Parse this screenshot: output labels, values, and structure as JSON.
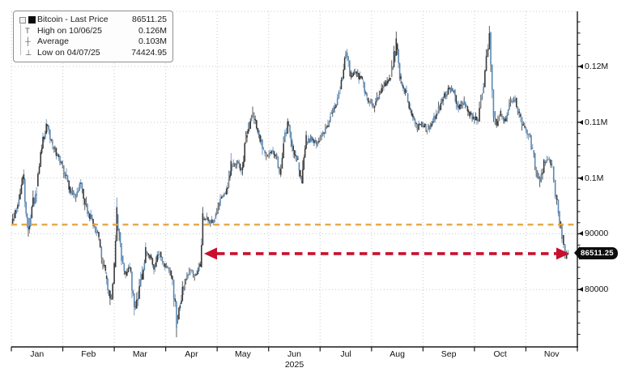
{
  "legend": {
    "rows": [
      {
        "marker": "filled-square-icon",
        "label": "Bitcoin - Last Price",
        "value": "86511.25"
      },
      {
        "marker": "high-tee-icon",
        "label": "High on 10/06/25",
        "value": "0.126M"
      },
      {
        "marker": "average-cross-icon",
        "label": "Average",
        "value": "0.103M"
      },
      {
        "marker": "low-tee-icon",
        "label": "Low on 04/07/25",
        "value": "74424.95"
      }
    ]
  },
  "axes": {
    "y_ticks": [
      {
        "label": "0.12M",
        "value": 120000
      },
      {
        "label": "0.11M",
        "value": 110000
      },
      {
        "label": "0.1M",
        "value": 100000
      },
      {
        "label": "90000",
        "value": 90000
      },
      {
        "label": "80000",
        "value": 80000
      }
    ],
    "x_months": [
      "Jan",
      "Feb",
      "Mar",
      "Apr",
      "May",
      "Jun",
      "Jul",
      "Aug",
      "Sep",
      "Oct",
      "Nov"
    ],
    "year": "2025"
  },
  "annotations": {
    "last_price_badge": "86511.25",
    "orange_reference_level": 91650,
    "red_arrow_level": 86450,
    "red_arrow_span_months": [
      3.75,
      10.8
    ]
  },
  "colors": {
    "bar_dark": "#383838",
    "bar_blue": "#5C88B2",
    "bar_gray": "#8C8C8C",
    "grid": "#c9c9c9",
    "axis": "#1a1a1a",
    "orange_line": "#E5A33E",
    "red_arrow": "#C8102E",
    "badge_bg": "#0d0d0d"
  },
  "chart_data": {
    "type": "line",
    "title": "Bitcoin - Last Price",
    "high": {
      "date": "10/06/25",
      "label": "0.126M"
    },
    "average_label": "0.103M",
    "low": {
      "date": "04/07/25",
      "value": 74424.95
    },
    "last": 86511.25,
    "x_unit": "months since 2025-01-01",
    "xlabels": [
      "Jan",
      "Feb",
      "Mar",
      "Apr",
      "May",
      "Jun",
      "Jul",
      "Aug",
      "Sep",
      "Oct",
      "Nov"
    ],
    "ylim": [
      69700,
      129900
    ],
    "grid": true,
    "legend_position": "top-left",
    "t": [
      0.0,
      0.1,
      0.22,
      0.33,
      0.49,
      0.57,
      0.68,
      0.8,
      0.92,
      1.07,
      1.12,
      1.23,
      1.35,
      1.48,
      1.59,
      1.7,
      1.83,
      1.94,
      2.0,
      2.05,
      2.14,
      2.22,
      2.3,
      2.41,
      2.54,
      2.61,
      2.69,
      2.77,
      2.88,
      2.96,
      3.06,
      3.13,
      3.21,
      3.28,
      3.37,
      3.48,
      3.56,
      3.67,
      3.72,
      3.8,
      3.87,
      3.95,
      4.06,
      4.16,
      4.27,
      4.38,
      4.47,
      4.58,
      4.69,
      4.79,
      4.9,
      4.98,
      5.06,
      5.13,
      5.21,
      5.29,
      5.37,
      5.48,
      5.57,
      5.64,
      5.73,
      5.84,
      5.95,
      6.08,
      6.2,
      6.31,
      6.39,
      6.5,
      6.6,
      6.71,
      6.82,
      6.91,
      7.06,
      7.15,
      7.26,
      7.37,
      7.48,
      7.57,
      7.68,
      7.78,
      7.89,
      7.97,
      8.08,
      8.17,
      8.28,
      8.39,
      8.49,
      8.6,
      8.69,
      8.8,
      8.91,
      9.07,
      9.15,
      9.23,
      9.29,
      9.37,
      9.43,
      9.51,
      9.61,
      9.7,
      9.79,
      9.87,
      9.95,
      10.05,
      10.13,
      10.2,
      10.27,
      10.35,
      10.43,
      10.51,
      10.57,
      10.63,
      10.7,
      10.76,
      10.82
    ],
    "price": [
      91800,
      94500,
      100700,
      90800,
      98500,
      104500,
      109600,
      105500,
      104000,
      100500,
      98500,
      96300,
      99200,
      94100,
      91900,
      89000,
      82500,
      78200,
      84000,
      93500,
      86100,
      82500,
      84000,
      76600,
      81800,
      86800,
      86100,
      84000,
      86800,
      84700,
      84000,
      81800,
      74425,
      77400,
      81800,
      83300,
      82500,
      84000,
      92700,
      93000,
      91900,
      92700,
      96300,
      97000,
      102100,
      102800,
      101400,
      107900,
      111800,
      108600,
      105000,
      103500,
      105000,
      104300,
      100600,
      106400,
      109500,
      105000,
      102800,
      99000,
      106400,
      107100,
      106400,
      107900,
      111500,
      113000,
      115900,
      122500,
      118100,
      118800,
      117300,
      114400,
      113000,
      115200,
      116600,
      118100,
      124000,
      117300,
      115200,
      111500,
      108600,
      110100,
      108600,
      110100,
      111500,
      114400,
      115900,
      115900,
      112300,
      113700,
      111500,
      110100,
      115200,
      121700,
      126200,
      112000,
      109300,
      111500,
      110100,
      113700,
      114400,
      111500,
      109300,
      107900,
      105000,
      101400,
      99200,
      102800,
      103500,
      102100,
      97000,
      94100,
      89800,
      85500,
      86511.25
    ]
  }
}
